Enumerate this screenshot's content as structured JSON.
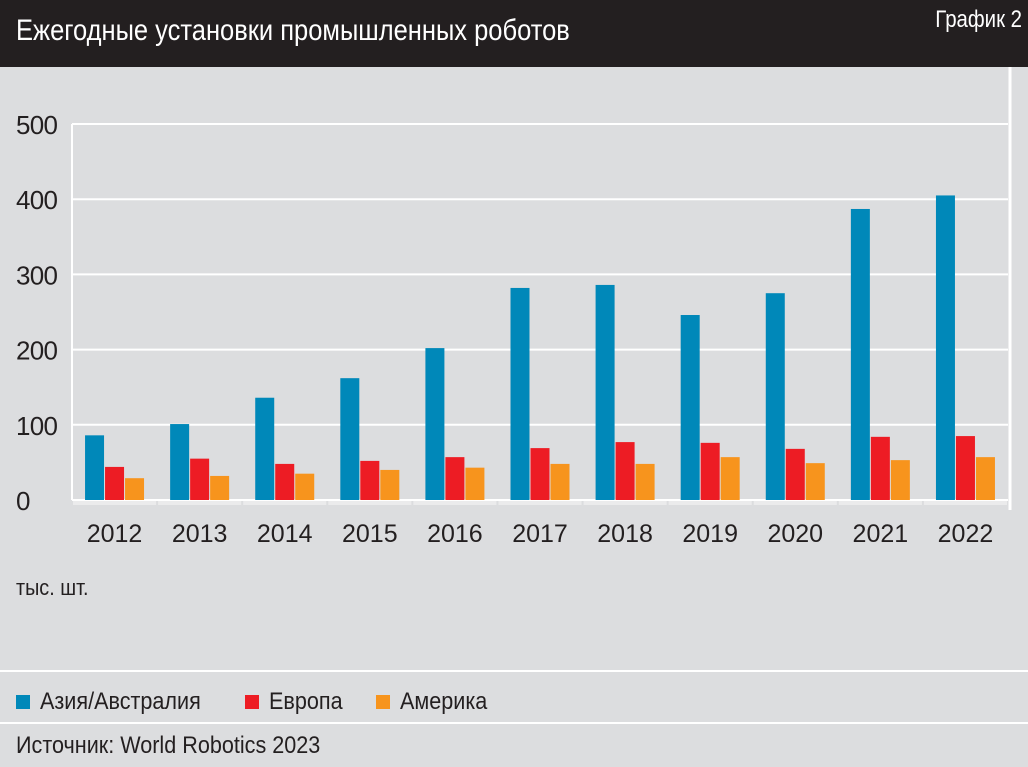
{
  "header": {
    "title": "Ежегодные установки промышленных роботов",
    "figure_label": "График 2"
  },
  "unit_label": "тыс. шт.",
  "source": "Источник: World Robotics 2023",
  "chart_data": {
    "type": "bar",
    "title": "Ежегодные установки промышленных роботов",
    "ylabel": "тыс. шт.",
    "ylim": [
      0,
      500
    ],
    "yticks": [
      0,
      100,
      200,
      300,
      400,
      500
    ],
    "grid": true,
    "legend_position": "bottom",
    "categories": [
      "2012",
      "2013",
      "2014",
      "2015",
      "2016",
      "2017",
      "2018",
      "2019",
      "2020",
      "2021",
      "2022"
    ],
    "series": [
      {
        "name": "Азия/Австралия",
        "color": "#0088b9",
        "values": [
          86,
          101,
          136,
          162,
          202,
          282,
          286,
          246,
          275,
          387,
          405
        ]
      },
      {
        "name": "Европа",
        "color": "#ed1c24",
        "values": [
          44,
          55,
          48,
          52,
          57,
          69,
          77,
          76,
          68,
          84,
          85
        ]
      },
      {
        "name": "Америка",
        "color": "#f7941d",
        "values": [
          29,
          32,
          35,
          40,
          43,
          48,
          48,
          57,
          49,
          53,
          57
        ]
      }
    ]
  }
}
